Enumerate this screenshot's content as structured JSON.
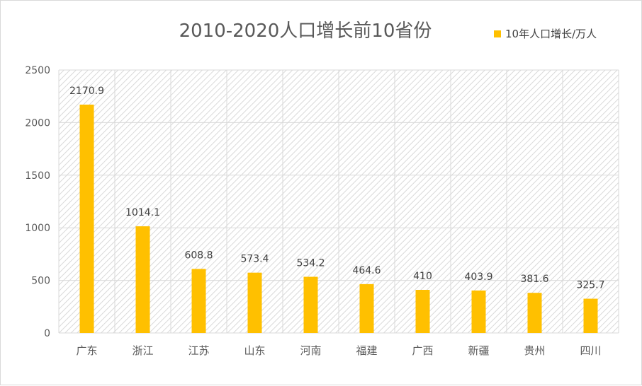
{
  "chart_data": {
    "type": "bar",
    "title": "2010-2020人口增长前10省份",
    "categories": [
      "广东",
      "浙江",
      "江苏",
      "山东",
      "河南",
      "福建",
      "广西",
      "新疆",
      "贵州",
      "四川"
    ],
    "series": [
      {
        "name": "10年人口增长/万人",
        "values": [
          2170.9,
          1014.1,
          608.8,
          573.4,
          534.2,
          464.6,
          410,
          403.9,
          381.6,
          325.7
        ],
        "color": "#ffc000"
      }
    ],
    "data_labels": [
      "2170.9",
      "1014.1",
      "608.8",
      "573.4",
      "534.2",
      "464.6",
      "410",
      "403.9",
      "381.6",
      "325.7"
    ],
    "ylim": [
      0,
      2500
    ],
    "yticks": [
      0,
      500,
      1000,
      1500,
      2000,
      2500
    ],
    "grid": true,
    "legend_position": "top-right",
    "plot_background": "hatched"
  }
}
